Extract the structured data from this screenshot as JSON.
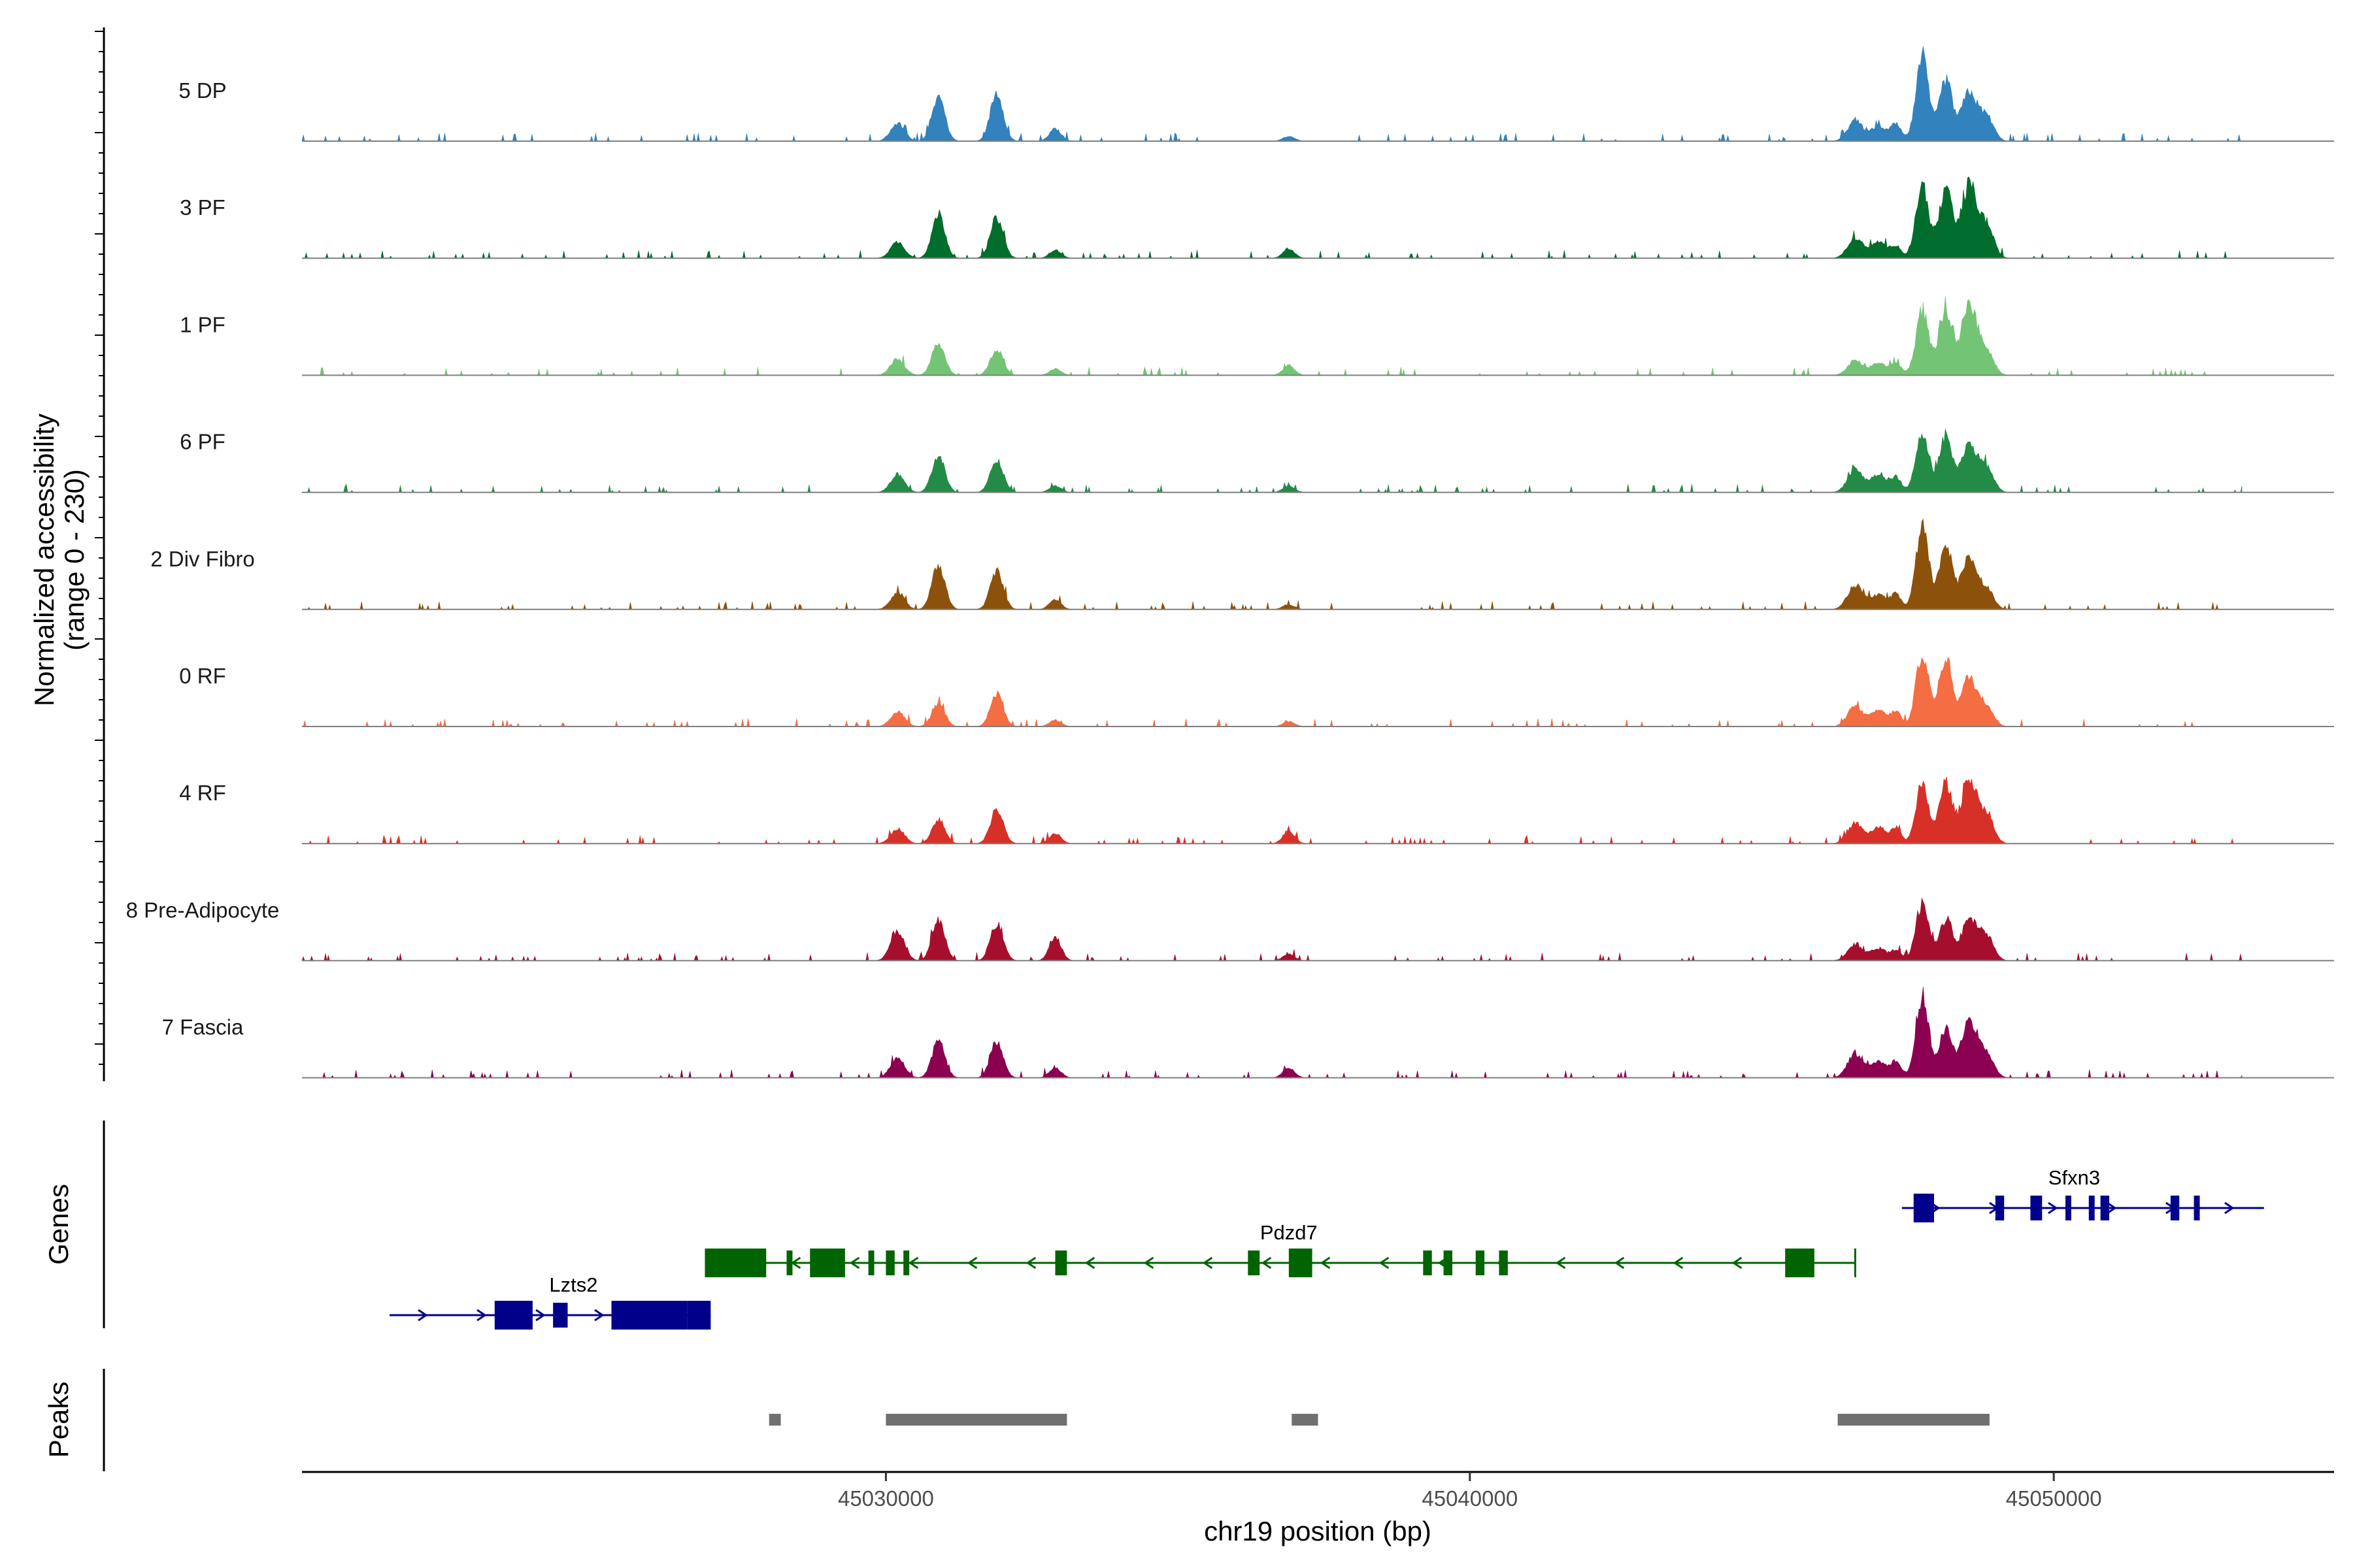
{
  "chart_data": {
    "type": "area",
    "title": "",
    "xlabel": "chr19 position (bp)",
    "ylabel": "Normalized accessibility\n(range 0 - 230)",
    "ylabel_lines": [
      "Normalized accessibility",
      "(range 0 - 230)"
    ],
    "yrange": [
      0,
      230
    ],
    "chromosome": "chr19",
    "xlim": [
      45020000,
      45054800
    ],
    "xticks": [
      45030000,
      45040000,
      45050000
    ],
    "xtick_labels": [
      "45030000",
      "45040000",
      "45050000"
    ],
    "panel_labels": {
      "genes": "Genes",
      "peaks": "Peaks"
    },
    "peak_color": "#707070",
    "strand_forward_color": "#00008B",
    "strand_reverse_color": "#006400",
    "coverage_peaks": [
      {
        "pos": 45030200,
        "width": 120
      },
      {
        "pos": 45030900,
        "width": 110
      },
      {
        "pos": 45031900,
        "width": 110
      },
      {
        "pos": 45032900,
        "width": 100
      },
      {
        "pos": 45036900,
        "width": 100
      },
      {
        "pos": 45046600,
        "width": 130
      },
      {
        "pos": 45047000,
        "width": 130
      },
      {
        "pos": 45047300,
        "width": 90
      },
      {
        "pos": 45047750,
        "width": 110
      },
      {
        "pos": 45048150,
        "width": 110
      },
      {
        "pos": 45048550,
        "width": 130
      },
      {
        "pos": 45048850,
        "width": 120
      }
    ],
    "series": [
      {
        "name": "5 DP",
        "color": "#3182BD",
        "heights": [
          0.22,
          0.55,
          0.6,
          0.15,
          0.06,
          0.25,
          0.18,
          0.2,
          1.0,
          0.75,
          0.6,
          0.3
        ]
      },
      {
        "name": "3 PF",
        "color": "#006D2C",
        "heights": [
          0.2,
          0.55,
          0.5,
          0.1,
          0.12,
          0.25,
          0.2,
          0.15,
          0.9,
          0.85,
          0.9,
          0.4
        ]
      },
      {
        "name": "1 PF",
        "color": "#74C476",
        "heights": [
          0.2,
          0.4,
          0.32,
          0.08,
          0.12,
          0.18,
          0.15,
          0.15,
          0.8,
          0.8,
          0.9,
          0.3
        ]
      },
      {
        "name": "6 PF",
        "color": "#238B45",
        "heights": [
          0.22,
          0.45,
          0.4,
          0.08,
          0.08,
          0.28,
          0.22,
          0.18,
          0.75,
          0.7,
          0.6,
          0.3
        ]
      },
      {
        "name": "2 Div Fibro",
        "color": "#8C510A",
        "heights": [
          0.2,
          0.55,
          0.48,
          0.12,
          0.06,
          0.3,
          0.18,
          0.18,
          1.0,
          0.8,
          0.65,
          0.25
        ]
      },
      {
        "name": "0 RF",
        "color": "#F46D43",
        "heights": [
          0.18,
          0.28,
          0.4,
          0.08,
          0.06,
          0.25,
          0.2,
          0.18,
          0.9,
          0.85,
          0.6,
          0.25
        ]
      },
      {
        "name": "4 RF",
        "color": "#D73027",
        "heights": [
          0.18,
          0.3,
          0.42,
          0.12,
          0.16,
          0.25,
          0.2,
          0.18,
          0.7,
          0.75,
          0.8,
          0.35
        ]
      },
      {
        "name": "8 Pre-Adipocyte",
        "color": "#A50F2D",
        "heights": [
          0.35,
          0.5,
          0.45,
          0.3,
          0.08,
          0.2,
          0.15,
          0.12,
          0.7,
          0.5,
          0.5,
          0.3
        ]
      },
      {
        "name": "7 Fascia",
        "color": "#8B0050",
        "heights": [
          0.25,
          0.45,
          0.45,
          0.12,
          0.12,
          0.3,
          0.2,
          0.2,
          1.0,
          0.6,
          0.7,
          0.3
        ]
      }
    ],
    "genes": [
      {
        "name": "Lzts2",
        "strand": "+",
        "start": 45021500,
        "end": 45027000,
        "row": 2,
        "exons": [
          [
            45023300,
            45023950
          ],
          [
            45024300,
            45024550
          ],
          [
            45025300,
            45026600
          ],
          [
            45026600,
            45027000
          ]
        ]
      },
      {
        "name": "Pdzd7",
        "strand": "-",
        "start": 45026900,
        "end": 45046600,
        "row": 1,
        "exons": [
          [
            45026900,
            45027950
          ],
          [
            45028300,
            45028400
          ],
          [
            45028700,
            45029300
          ],
          [
            45029700,
            45029800
          ],
          [
            45030000,
            45030150
          ],
          [
            45030300,
            45030400
          ],
          [
            45032900,
            45033100
          ],
          [
            45036200,
            45036400
          ],
          [
            45036900,
            45037300
          ],
          [
            45039200,
            45039350
          ],
          [
            45039550,
            45039700
          ],
          [
            45040100,
            45040250
          ],
          [
            45040500,
            45040650
          ],
          [
            45045400,
            45045900
          ]
        ]
      },
      {
        "name": "Sfxn3",
        "strand": "+",
        "start": 45047400,
        "end": 45053600,
        "row": 0,
        "exons": [
          [
            45047600,
            45047950
          ],
          [
            45049000,
            45049150
          ],
          [
            45049600,
            45049800
          ],
          [
            45050200,
            45050300
          ],
          [
            45050600,
            45050700
          ],
          [
            45050800,
            45050950
          ],
          [
            45052000,
            45052150
          ],
          [
            45052400,
            45052500
          ]
        ]
      }
    ],
    "peaks": [
      {
        "start": 45028000,
        "end": 45028200
      },
      {
        "start": 45030000,
        "end": 45033100
      },
      {
        "start": 45036950,
        "end": 45037400
      },
      {
        "start": 45046300,
        "end": 45048900
      }
    ]
  }
}
